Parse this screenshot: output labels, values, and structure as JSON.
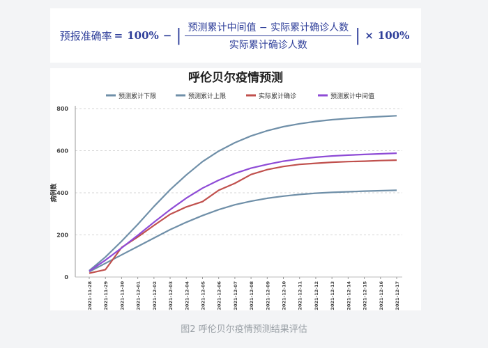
{
  "formula": {
    "lhs": "预报准确率",
    "equals": "=",
    "hundred1": "100%",
    "minus": "−",
    "numerator": "预测累计中间值 − 实际累计确诊人数",
    "denominator": "实际累计确诊人数",
    "times": "×",
    "hundred2": "100%"
  },
  "caption": "图2 呼伦贝尔疫情预测结果评估",
  "chart_data": {
    "type": "line",
    "title": "呼伦贝尔疫情预测",
    "xlabel": "",
    "ylabel": "病例数",
    "ylim": [
      0,
      800
    ],
    "yticks": [
      0,
      200,
      400,
      600,
      800
    ],
    "grid": true,
    "legend_position": "top",
    "categories": [
      "2021-11-28",
      "2021-11-29",
      "2021-11-30",
      "2021-12-01",
      "2021-12-02",
      "2021-12-03",
      "2021-12-04",
      "2021-12-05",
      "2021-12-06",
      "2021-12-07",
      "2021-12-08",
      "2021-12-09",
      "2021-12-10",
      "2021-12-11",
      "2021-12-12",
      "2021-12-13",
      "2021-12-14",
      "2021-12-15",
      "2021-12-16",
      "2021-12-17"
    ],
    "series": [
      {
        "name": "预测累计下限",
        "color": "#6f8fa8",
        "values": [
          25,
          65,
          105,
          145,
          185,
          225,
          260,
          292,
          320,
          343,
          360,
          374,
          384,
          392,
          398,
          402,
          405,
          408,
          410,
          412
        ]
      },
      {
        "name": "预测累计上限",
        "color": "#6f8fa8",
        "values": [
          30,
          95,
          170,
          250,
          335,
          415,
          485,
          548,
          598,
          638,
          670,
          695,
          714,
          728,
          739,
          747,
          753,
          758,
          762,
          766
        ]
      },
      {
        "name": "实际累计确诊",
        "color": "#c0504d",
        "values": [
          18,
          35,
          140,
          190,
          245,
          298,
          333,
          358,
          412,
          445,
          487,
          510,
          525,
          535,
          540,
          545,
          548,
          550,
          553,
          555
        ]
      },
      {
        "name": "预测累计中间值",
        "color": "#8e4bd6",
        "values": [
          28,
          80,
          138,
          198,
          260,
          320,
          375,
          422,
          460,
          492,
          517,
          535,
          550,
          561,
          569,
          575,
          579,
          582,
          585,
          588
        ]
      }
    ]
  }
}
